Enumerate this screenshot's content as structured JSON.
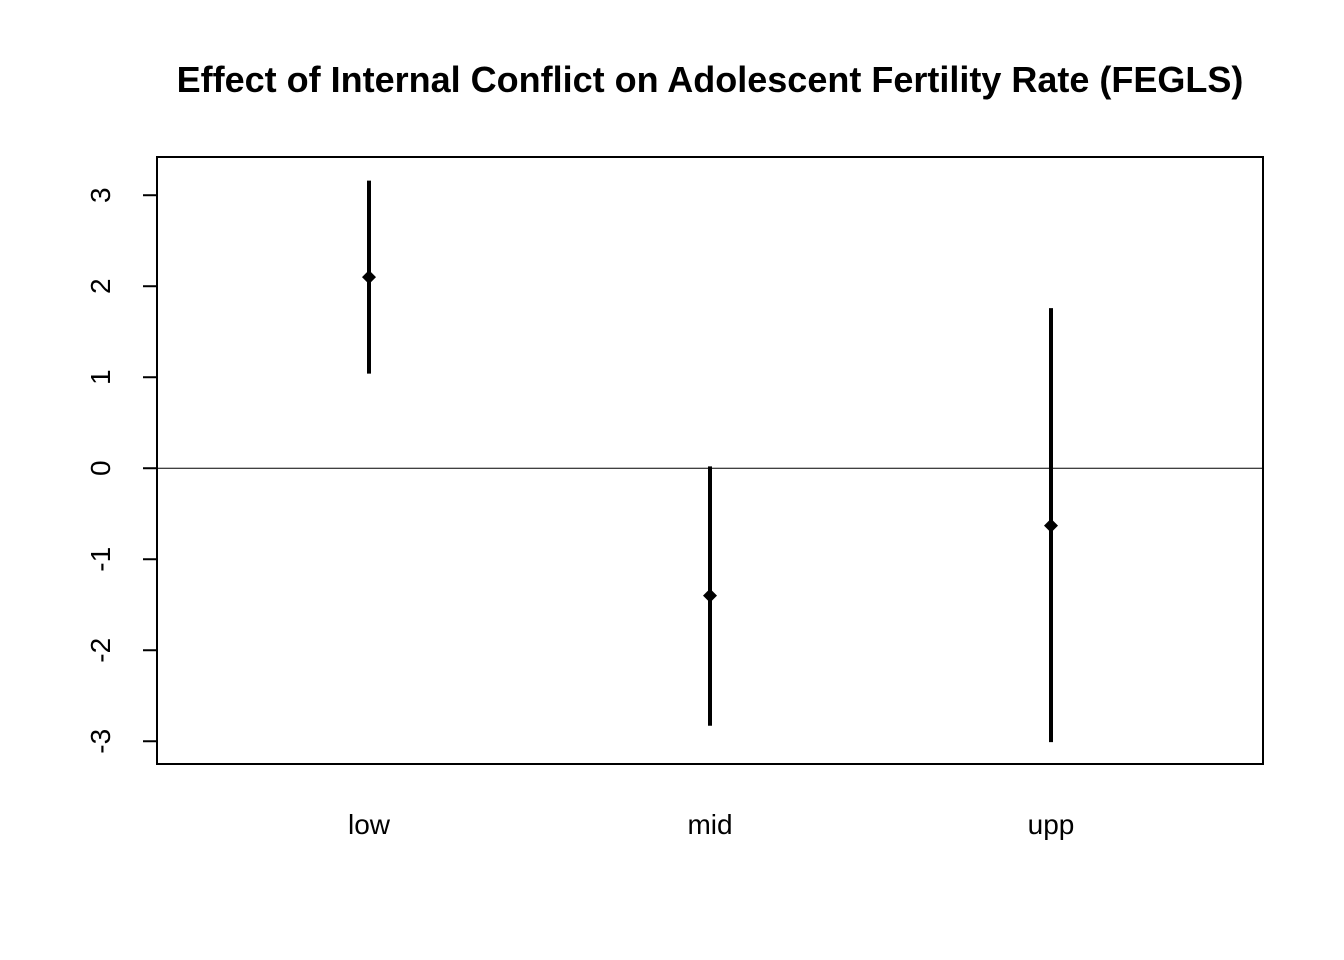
{
  "chart_data": {
    "type": "errorbar",
    "title": "Effect of Internal Conflict on Adolescent Fertility Rate (FEGLS)",
    "xlabel": "",
    "ylabel": "",
    "categories": [
      "low",
      "mid",
      "upp"
    ],
    "estimates": [
      2.1,
      -1.4,
      -0.63
    ],
    "lower": [
      1.04,
      -2.83,
      -3.01
    ],
    "upper": [
      3.16,
      0.02,
      1.76
    ],
    "ylim": [
      -3.25,
      3.42
    ],
    "yticks": [
      -3,
      -2,
      -1,
      0,
      1,
      2,
      3
    ],
    "ytick_labels": [
      "-3",
      "-2",
      "-1",
      "0",
      "1",
      "2",
      "3"
    ],
    "reference_line": 0,
    "grid": false,
    "legend": "none",
    "colors": {
      "marks": "#000000",
      "axis": "#000000"
    }
  }
}
